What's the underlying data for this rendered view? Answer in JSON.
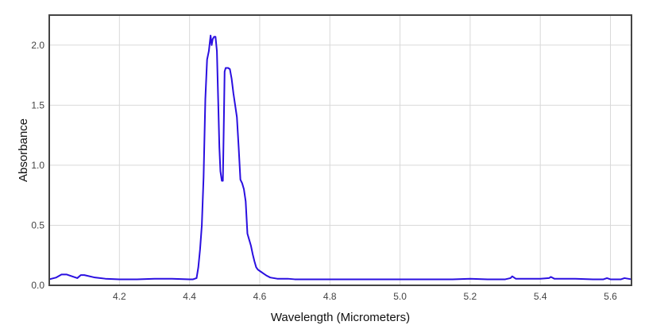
{
  "chart_data": {
    "type": "line",
    "title": "",
    "xlabel": "Wavelength (Micrometers)",
    "ylabel": "Absorbance",
    "xlim": [
      4.0,
      5.66
    ],
    "ylim": [
      0,
      2.25
    ],
    "grid": true,
    "xticks": [
      4.2,
      4.4,
      4.6,
      4.8,
      5.0,
      5.2,
      5.4,
      5.6
    ],
    "xtick_labels": [
      "4.2",
      "4.4",
      "4.6",
      "4.8",
      "5.0",
      "5.2",
      "5.4",
      "5.6"
    ],
    "yticks": [
      0,
      0.5,
      1.0,
      1.5,
      2.0
    ],
    "ytick_labels": [
      "0.0",
      "0.5",
      "1.0",
      "1.5",
      "2.0"
    ],
    "colors": {
      "line": "#2a0fe0",
      "grid": "#d9d9d9",
      "frame": "#444444"
    },
    "series": [
      {
        "x": [
          4.0,
          4.02,
          4.035,
          4.05,
          4.07,
          4.08,
          4.09,
          4.1,
          4.13,
          4.16,
          4.2,
          4.25,
          4.3,
          4.35,
          4.4,
          4.41,
          4.42,
          4.425,
          4.43,
          4.435,
          4.44,
          4.445,
          4.45,
          4.455,
          4.46,
          4.463,
          4.466,
          4.47,
          4.474,
          4.478,
          4.482,
          4.485,
          4.488,
          4.492,
          4.495,
          4.498,
          4.5,
          4.503,
          4.506,
          4.51,
          4.515,
          4.52,
          4.525,
          4.53,
          4.535,
          4.54,
          4.545,
          4.55,
          4.555,
          4.56,
          4.565,
          4.57,
          4.575,
          4.58,
          4.585,
          4.59,
          4.595,
          4.6,
          4.605,
          4.61,
          4.62,
          4.63,
          4.64,
          4.65,
          4.68,
          4.7,
          4.75,
          4.8,
          4.85,
          4.9,
          4.95,
          5.0,
          5.05,
          5.1,
          5.15,
          5.2,
          5.25,
          5.3,
          5.315,
          5.32,
          5.33,
          5.35,
          5.4,
          5.425,
          5.43,
          5.44,
          5.45,
          5.5,
          5.55,
          5.58,
          5.59,
          5.6,
          5.63,
          5.64,
          5.66
        ],
        "y": [
          0.05,
          0.065,
          0.09,
          0.09,
          0.07,
          0.06,
          0.085,
          0.085,
          0.065,
          0.055,
          0.05,
          0.05,
          0.055,
          0.055,
          0.05,
          0.05,
          0.06,
          0.15,
          0.3,
          0.5,
          0.9,
          1.55,
          1.88,
          1.95,
          2.08,
          2.0,
          2.05,
          2.07,
          2.07,
          1.95,
          1.5,
          1.15,
          0.95,
          0.87,
          0.87,
          1.4,
          1.78,
          1.81,
          1.81,
          1.81,
          1.8,
          1.72,
          1.6,
          1.5,
          1.4,
          1.15,
          0.88,
          0.85,
          0.8,
          0.7,
          0.43,
          0.38,
          0.33,
          0.26,
          0.2,
          0.15,
          0.13,
          0.12,
          0.11,
          0.1,
          0.08,
          0.065,
          0.06,
          0.055,
          0.055,
          0.05,
          0.05,
          0.05,
          0.05,
          0.05,
          0.05,
          0.05,
          0.05,
          0.05,
          0.05,
          0.055,
          0.05,
          0.05,
          0.06,
          0.075,
          0.055,
          0.055,
          0.055,
          0.06,
          0.07,
          0.055,
          0.055,
          0.055,
          0.05,
          0.05,
          0.06,
          0.05,
          0.05,
          0.06,
          0.05
        ]
      }
    ]
  }
}
